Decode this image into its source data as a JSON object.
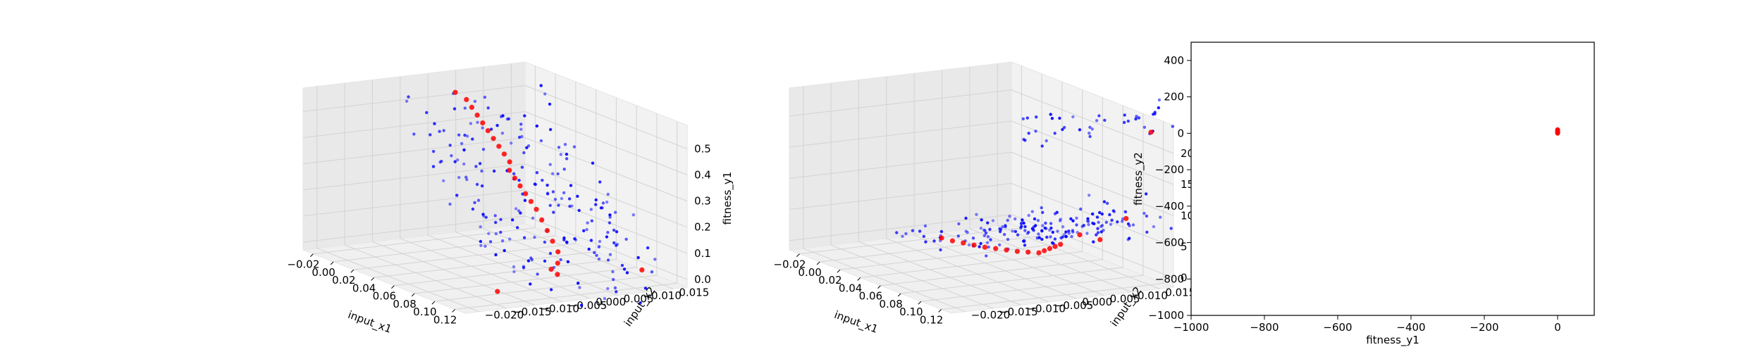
{
  "colors": {
    "blue": "#0000ff",
    "red": "#ff0000",
    "pane": "#f2f2f2",
    "grid": "#d3d3d3"
  },
  "chart_data": [
    {
      "type": "scatter3d",
      "xlabel": "input_x1",
      "ylabel": "input_x2",
      "zlabel": "fitness_y1",
      "xticks": [
        "−0.02",
        "0.00",
        "0.02",
        "0.04",
        "0.06",
        "0.08",
        "0.10",
        "0.12"
      ],
      "yticks": [
        "−0.020",
        "−0.015",
        "−0.010",
        "−0.005",
        "0.000",
        "0.005",
        "0.010",
        "0.015"
      ],
      "zticks": [
        "0.0",
        "0.1",
        "0.2",
        "0.3",
        "0.4",
        "0.5"
      ],
      "xlim": [
        -0.025,
        0.125
      ],
      "ylim": [
        -0.022,
        0.017
      ],
      "zlim": [
        -0.05,
        0.52
      ],
      "series": [
        {
          "color": "blue",
          "role": "sampled points",
          "points": "generated"
        },
        {
          "color": "red",
          "role": "pareto front",
          "points": [
            [
              0.0,
              0.0,
              0.49
            ],
            [
              0.005,
              0.001,
              0.47
            ],
            [
              0.01,
              0.001,
              0.45
            ],
            [
              0.015,
              0.001,
              0.43
            ],
            [
              0.02,
              0.001,
              0.41
            ],
            [
              0.025,
              0.001,
              0.39
            ],
            [
              0.03,
              0.001,
              0.37
            ],
            [
              0.035,
              0.001,
              0.35
            ],
            [
              0.04,
              0.001,
              0.33
            ],
            [
              0.045,
              0.001,
              0.31
            ],
            [
              0.05,
              0.0,
              0.29
            ],
            [
              0.055,
              0.0,
              0.27
            ],
            [
              0.06,
              0.0,
              0.25
            ],
            [
              0.065,
              0.0,
              0.23
            ],
            [
              0.07,
              0.0,
              0.21
            ],
            [
              0.075,
              0.0,
              0.19
            ],
            [
              0.08,
              0.0,
              0.16
            ],
            [
              0.085,
              0.0,
              0.13
            ],
            [
              0.09,
              0.0,
              0.1
            ],
            [
              0.095,
              0.0,
              0.07
            ],
            [
              0.1,
              -0.001,
              0.04
            ],
            [
              0.105,
              -0.002,
              0.01
            ],
            [
              0.118,
              -0.015,
              0.0
            ],
            [
              0.12,
              0.01,
              0.02
            ],
            [
              0.115,
              -0.005,
              0.05
            ]
          ]
        }
      ]
    },
    {
      "type": "scatter3d",
      "xlabel": "input_x1",
      "ylabel": "input_x2",
      "zlabel": "fitness_y2",
      "xticks": [
        "−0.02",
        "0.00",
        "0.02",
        "0.04",
        "0.06",
        "0.08",
        "0.10",
        "0.12"
      ],
      "yticks": [
        "−0.020",
        "−0.015",
        "−0.010",
        "−0.005",
        "0.000",
        "0.005",
        "0.010",
        "0.015"
      ],
      "zticks": [
        "0",
        "5",
        "10",
        "15",
        "20"
      ],
      "xlim": [
        -0.025,
        0.125
      ],
      "ylim": [
        -0.022,
        0.017
      ],
      "zlim": [
        -1,
        22
      ],
      "series": [
        {
          "color": "blue",
          "role": "sampled points",
          "points": "generated"
        },
        {
          "color": "red",
          "role": "pareto front",
          "points": [
            [
              0.0,
              0.0,
              0.1
            ],
            [
              0.01,
              0.0,
              0.3
            ],
            [
              0.02,
              0.0,
              0.6
            ],
            [
              0.03,
              0.0,
              0.9
            ],
            [
              0.04,
              0.0,
              1.2
            ],
            [
              0.05,
              0.0,
              1.6
            ],
            [
              0.06,
              0.0,
              2.0
            ],
            [
              0.07,
              0.0,
              2.4
            ],
            [
              0.08,
              0.0,
              2.9
            ],
            [
              0.09,
              0.0,
              3.4
            ],
            [
              0.095,
              0.0,
              4.0
            ],
            [
              0.1,
              0.0,
              4.6
            ],
            [
              0.105,
              0.0,
              5.2
            ],
            [
              0.11,
              0.0,
              5.8
            ],
            [
              0.112,
              0.003,
              7.0
            ],
            [
              0.115,
              0.006,
              6.2
            ],
            [
              0.118,
              0.01,
              9.0
            ],
            [
              0.12,
              0.014,
              21.0
            ]
          ]
        }
      ]
    },
    {
      "type": "scatter",
      "xlabel": "fitness_y1",
      "ylabel": "fitness_y2",
      "xlim": [
        -1000,
        100
      ],
      "ylim": [
        -1000,
        500
      ],
      "xticks": [
        -1000,
        -800,
        -600,
        -400,
        -200,
        0
      ],
      "yticks": [
        -1000,
        -800,
        -600,
        -400,
        -200,
        0,
        200,
        400
      ],
      "series": [
        {
          "color": "red",
          "points": [
            [
              0,
              0
            ],
            [
              0,
              5
            ],
            [
              0,
              10
            ],
            [
              0,
              15
            ],
            [
              0,
              20
            ],
            [
              0.2,
              8
            ],
            [
              0.4,
              2
            ],
            [
              0,
              12
            ],
            [
              0.1,
              18
            ],
            [
              0.3,
              4
            ]
          ]
        }
      ]
    }
  ]
}
